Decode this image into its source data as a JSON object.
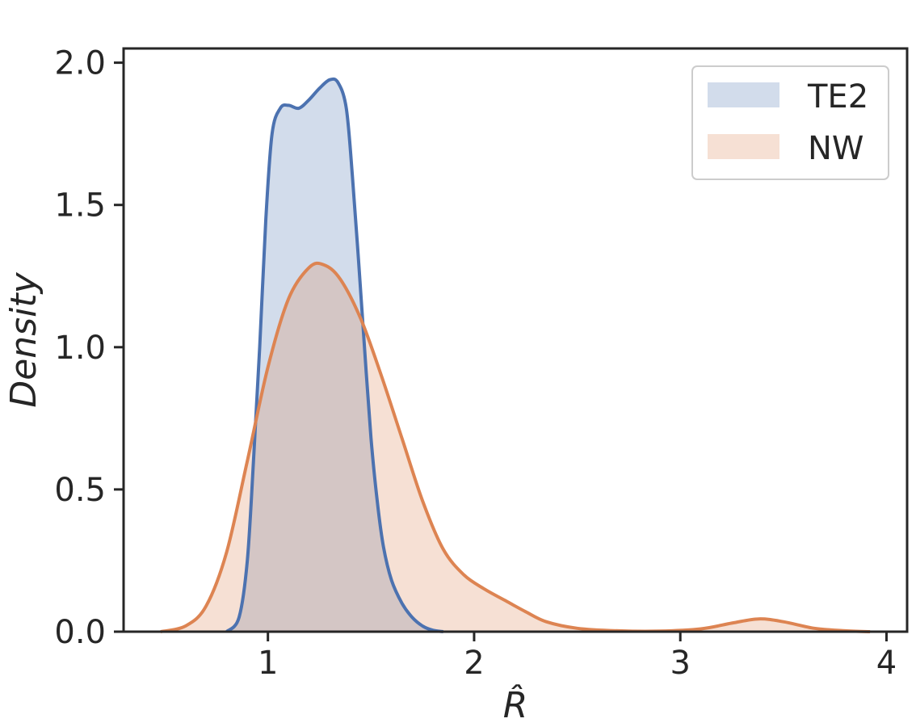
{
  "chart_data": {
    "type": "area",
    "xlabel": "R̂",
    "ylabel": "Density",
    "xlim": [
      0.3,
      4.1
    ],
    "ylim": [
      0,
      2.05
    ],
    "xticks": [
      1,
      2,
      3,
      4
    ],
    "xtick_labels": [
      "1",
      "2",
      "3",
      "4"
    ],
    "yticks": [
      0,
      0.5,
      1.0,
      1.5,
      2.0
    ],
    "ytick_labels": [
      "0.0",
      "0.5",
      "1.0",
      "1.5",
      "2.0"
    ],
    "grid": false,
    "legend_position": "top-right",
    "series": [
      {
        "name": "TE2",
        "color": "#4c72b0",
        "fill": "#c9d4e8",
        "points": [
          [
            0.8,
            0.0
          ],
          [
            0.86,
            0.05
          ],
          [
            0.9,
            0.25
          ],
          [
            0.93,
            0.6
          ],
          [
            0.96,
            1.0
          ],
          [
            0.99,
            1.45
          ],
          [
            1.02,
            1.75
          ],
          [
            1.06,
            1.84
          ],
          [
            1.1,
            1.85
          ],
          [
            1.15,
            1.84
          ],
          [
            1.2,
            1.87
          ],
          [
            1.25,
            1.91
          ],
          [
            1.3,
            1.94
          ],
          [
            1.34,
            1.93
          ],
          [
            1.38,
            1.84
          ],
          [
            1.41,
            1.6
          ],
          [
            1.44,
            1.3
          ],
          [
            1.47,
            0.98
          ],
          [
            1.5,
            0.68
          ],
          [
            1.53,
            0.46
          ],
          [
            1.56,
            0.3
          ],
          [
            1.6,
            0.18
          ],
          [
            1.65,
            0.1
          ],
          [
            1.7,
            0.05
          ],
          [
            1.75,
            0.02
          ],
          [
            1.8,
            0.005
          ],
          [
            1.85,
            0.0
          ]
        ]
      },
      {
        "name": "NW",
        "color": "#dd8452",
        "fill": "#f5d0bc",
        "points": [
          [
            0.48,
            0.0
          ],
          [
            0.6,
            0.02
          ],
          [
            0.7,
            0.09
          ],
          [
            0.8,
            0.28
          ],
          [
            0.9,
            0.6
          ],
          [
            1.0,
            0.93
          ],
          [
            1.1,
            1.17
          ],
          [
            1.2,
            1.28
          ],
          [
            1.27,
            1.29
          ],
          [
            1.35,
            1.24
          ],
          [
            1.45,
            1.1
          ],
          [
            1.55,
            0.9
          ],
          [
            1.65,
            0.68
          ],
          [
            1.75,
            0.46
          ],
          [
            1.85,
            0.29
          ],
          [
            1.95,
            0.2
          ],
          [
            2.05,
            0.15
          ],
          [
            2.15,
            0.11
          ],
          [
            2.25,
            0.07
          ],
          [
            2.35,
            0.035
          ],
          [
            2.5,
            0.012
          ],
          [
            2.7,
            0.003
          ],
          [
            2.9,
            0.002
          ],
          [
            3.1,
            0.01
          ],
          [
            3.25,
            0.03
          ],
          [
            3.38,
            0.045
          ],
          [
            3.5,
            0.035
          ],
          [
            3.65,
            0.012
          ],
          [
            3.8,
            0.003
          ],
          [
            3.92,
            0.0
          ]
        ]
      }
    ]
  }
}
